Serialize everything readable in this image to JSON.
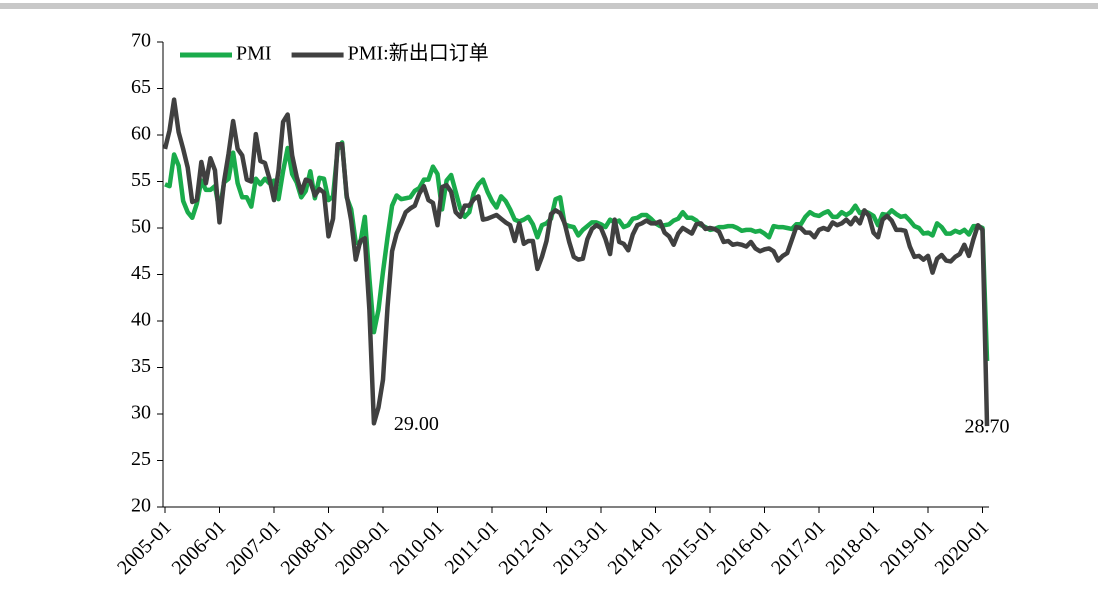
{
  "chart_data": {
    "type": "line",
    "categories": [
      "2005-01",
      null,
      null,
      null,
      null,
      null,
      null,
      null,
      null,
      null,
      null,
      null,
      "2006-01",
      null,
      null,
      null,
      null,
      null,
      null,
      null,
      null,
      null,
      null,
      null,
      "2007-01",
      null,
      null,
      null,
      null,
      null,
      null,
      null,
      null,
      null,
      null,
      null,
      "2008-01",
      null,
      null,
      null,
      null,
      null,
      null,
      null,
      null,
      null,
      null,
      null,
      "2009-01",
      null,
      null,
      null,
      null,
      null,
      null,
      null,
      null,
      null,
      null,
      null,
      "2010-01",
      null,
      null,
      null,
      null,
      null,
      null,
      null,
      null,
      null,
      null,
      null,
      "2011-01",
      null,
      null,
      null,
      null,
      null,
      null,
      null,
      null,
      null,
      null,
      null,
      "2012-01",
      null,
      null,
      null,
      null,
      null,
      null,
      null,
      null,
      null,
      null,
      null,
      "2013-01",
      null,
      null,
      null,
      null,
      null,
      null,
      null,
      null,
      null,
      null,
      null,
      "2014-01",
      null,
      null,
      null,
      null,
      null,
      null,
      null,
      null,
      null,
      null,
      null,
      "2015-01",
      null,
      null,
      null,
      null,
      null,
      null,
      null,
      null,
      null,
      null,
      null,
      "2016-01",
      null,
      null,
      null,
      null,
      null,
      null,
      null,
      null,
      null,
      null,
      null,
      "2017-01",
      null,
      null,
      null,
      null,
      null,
      null,
      null,
      null,
      null,
      null,
      null,
      "2018-01",
      null,
      null,
      null,
      null,
      null,
      null,
      null,
      null,
      null,
      null,
      null,
      "2019-01",
      null,
      null,
      null,
      null,
      null,
      null,
      null,
      null,
      null,
      null,
      null,
      "2020-01",
      null
    ],
    "series": [
      {
        "name": "PMI",
        "color": "#1aab4b",
        "values": [
          54.7,
          54.5,
          57.9,
          56.7,
          52.9,
          51.7,
          51.1,
          52.6,
          55.1,
          54.1,
          54.1,
          54.5,
          51.8,
          54.9,
          55.3,
          58.1,
          54.8,
          53.3,
          53.3,
          52.3,
          55.3,
          54.7,
          55.3,
          54.8,
          55.1,
          53.1,
          56.1,
          58.6,
          55.8,
          54.9,
          53.3,
          54.0,
          56.1,
          53.2,
          55.4,
          55.3,
          53.0,
          53.4,
          58.4,
          59.2,
          53.3,
          52.0,
          48.4,
          48.4,
          51.2,
          44.6,
          38.8,
          41.2,
          45.3,
          49.0,
          52.4,
          53.5,
          53.1,
          53.2,
          53.3,
          54.0,
          54.3,
          55.2,
          55.2,
          56.6,
          55.8,
          52.0,
          55.1,
          55.7,
          53.9,
          52.1,
          51.2,
          51.7,
          53.8,
          54.7,
          55.2,
          53.9,
          52.9,
          52.2,
          53.4,
          52.9,
          52.0,
          50.9,
          50.7,
          50.9,
          51.2,
          50.4,
          49.0,
          50.3,
          50.5,
          51.0,
          53.1,
          53.3,
          50.4,
          50.2,
          50.1,
          49.2,
          49.8,
          50.2,
          50.6,
          50.6,
          50.4,
          50.1,
          50.9,
          50.6,
          50.8,
          50.1,
          50.3,
          51.0,
          51.1,
          51.4,
          51.4,
          51.0,
          50.5,
          50.2,
          50.3,
          50.4,
          50.8,
          51.0,
          51.7,
          51.1,
          51.1,
          50.8,
          50.3,
          50.1,
          49.8,
          49.9,
          50.1,
          50.1,
          50.2,
          50.2,
          50.0,
          49.7,
          49.8,
          49.8,
          49.6,
          49.7,
          49.4,
          49.0,
          50.2,
          50.1,
          50.1,
          50.0,
          49.9,
          50.4,
          50.4,
          51.2,
          51.7,
          51.4,
          51.3,
          51.6,
          51.8,
          51.2,
          51.2,
          51.7,
          51.4,
          51.7,
          52.4,
          51.6,
          51.8,
          51.6,
          51.3,
          50.3,
          51.5,
          51.4,
          51.9,
          51.5,
          51.2,
          51.3,
          50.8,
          50.2,
          50.0,
          49.4,
          49.5,
          49.2,
          50.5,
          50.1,
          49.4,
          49.4,
          49.7,
          49.5,
          49.8,
          49.3,
          50.2,
          50.2,
          50.0,
          35.7
        ]
      },
      {
        "name": "PMI:新出口订单",
        "color": "#404040",
        "values": [
          58.5,
          60.5,
          63.8,
          60.3,
          58.5,
          56.5,
          52.8,
          53.0,
          57.1,
          54.8,
          57.5,
          56.2,
          50.6,
          55.0,
          58.0,
          61.5,
          58.5,
          57.8,
          55.2,
          55.0,
          60.1,
          57.2,
          57.0,
          55.3,
          53.0,
          56.2,
          61.4,
          62.2,
          57.8,
          55.5,
          53.8,
          55.2,
          55.0,
          53.5,
          54.2,
          53.8,
          49.1,
          51.0,
          59.0,
          59.0,
          53.5,
          50.8,
          46.6,
          48.6,
          48.9,
          41.2,
          29.0,
          30.7,
          33.7,
          41.5,
          47.5,
          49.4,
          50.5,
          51.7,
          52.1,
          52.4,
          53.7,
          54.5,
          53.0,
          52.7,
          50.3,
          54.4,
          54.6,
          53.9,
          51.7,
          51.2,
          52.4,
          52.4,
          53.1,
          53.4,
          50.9,
          51.0,
          51.2,
          51.4,
          51.0,
          50.6,
          50.3,
          48.6,
          50.5,
          48.3,
          48.6,
          48.6,
          45.6,
          46.9,
          48.6,
          51.5,
          51.9,
          51.6,
          50.5,
          48.5,
          46.9,
          46.6,
          46.7,
          48.8,
          49.9,
          50.3,
          50.0,
          48.8,
          47.2,
          50.9,
          48.5,
          48.3,
          47.6,
          49.3,
          50.3,
          50.5,
          50.8,
          50.5,
          50.5,
          50.7,
          49.5,
          49.1,
          48.2,
          49.4,
          50.0,
          49.7,
          49.4,
          50.4,
          50.5,
          49.9,
          50.0,
          49.9,
          49.6,
          48.5,
          48.6,
          48.2,
          48.3,
          48.2,
          48.0,
          48.5,
          47.8,
          47.5,
          47.7,
          47.8,
          47.5,
          46.5,
          47.0,
          47.3,
          48.7,
          50.1,
          50.0,
          49.5,
          49.5,
          49.0,
          49.8,
          50.0,
          49.8,
          50.6,
          50.3,
          50.5,
          50.9,
          50.4,
          51.1,
          50.5,
          51.9,
          51.3,
          49.5,
          49.0,
          50.9,
          51.3,
          50.8,
          49.8,
          49.8,
          49.7,
          48.0,
          46.9,
          47.0,
          46.6,
          47.0,
          45.2,
          46.7,
          47.1,
          46.5,
          46.4,
          46.9,
          47.2,
          48.2,
          47.0,
          48.8,
          50.3,
          49.8,
          28.7
        ],
        "value_labels": [
          null,
          null,
          null,
          null,
          null,
          null,
          null,
          null,
          null,
          null,
          null,
          null,
          null,
          null,
          null,
          null,
          null,
          null,
          null,
          null,
          null,
          null,
          null,
          null,
          null,
          null,
          null,
          null,
          null,
          null,
          null,
          null,
          null,
          null,
          null,
          null,
          null,
          null,
          null,
          null,
          null,
          null,
          null,
          null,
          null,
          null,
          "29.00",
          null,
          null,
          null,
          null,
          null,
          null,
          null,
          null,
          null,
          null,
          null,
          null,
          null,
          null,
          null,
          null,
          null,
          null,
          null,
          null,
          null,
          null,
          null,
          null,
          null,
          null,
          null,
          null,
          null,
          null,
          null,
          null,
          null,
          null,
          null,
          null,
          null,
          null,
          null,
          null,
          null,
          null,
          null,
          null,
          null,
          null,
          null,
          null,
          null,
          null,
          null,
          null,
          null,
          null,
          null,
          null,
          null,
          null,
          null,
          null,
          null,
          null,
          null,
          null,
          null,
          null,
          null,
          null,
          null,
          null,
          null,
          null,
          null,
          null,
          null,
          null,
          null,
          null,
          null,
          null,
          null,
          null,
          null,
          null,
          null,
          null,
          null,
          null,
          null,
          null,
          null,
          null,
          null,
          null,
          null,
          null,
          null,
          null,
          null,
          null,
          null,
          null,
          null,
          null,
          null,
          null,
          null,
          null,
          null,
          null,
          null,
          null,
          null,
          null,
          null,
          null,
          null,
          null,
          null,
          null,
          null,
          null,
          null,
          null,
          null,
          null,
          null,
          null,
          null,
          null,
          null,
          null,
          null,
          null,
          "28.70"
        ]
      }
    ],
    "ylim": [
      20,
      70
    ],
    "yticks": [
      20,
      25,
      30,
      35,
      40,
      45,
      50,
      55,
      60,
      65,
      70
    ],
    "legend": "upper left",
    "grid": false
  }
}
